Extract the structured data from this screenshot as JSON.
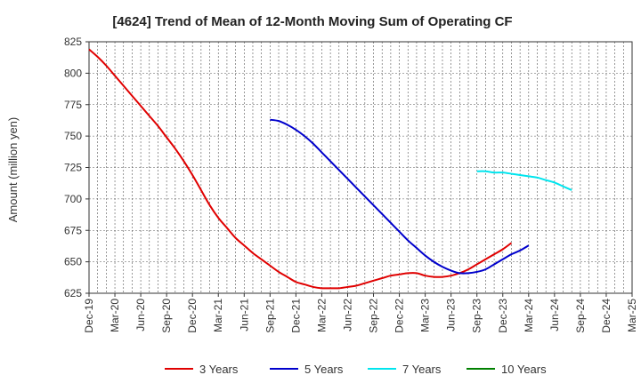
{
  "chart_data": {
    "type": "line",
    "title": "[4624]  Trend of Mean of 12-Month Moving Sum of Operating CF",
    "xlabel": "",
    "ylabel": "Amount (million yen)",
    "ylim": [
      625,
      825
    ],
    "yticks": [
      625,
      650,
      675,
      700,
      725,
      750,
      775,
      800,
      825
    ],
    "grid": true,
    "legend_position": "bottom",
    "x_tick_labels": [
      "Dec-19",
      "Mar-20",
      "Jun-20",
      "Sep-20",
      "Dec-20",
      "Mar-21",
      "Jun-21",
      "Sep-21",
      "Dec-21",
      "Mar-22",
      "Jun-22",
      "Sep-22",
      "Dec-22",
      "Mar-23",
      "Jun-23",
      "Sep-23",
      "Dec-23",
      "Mar-24",
      "Jun-24",
      "Sep-24",
      "Dec-24",
      "Mar-25"
    ],
    "series": [
      {
        "name": "3 Years",
        "color": "#e00000",
        "start_month_index": 0,
        "values": [
          819,
          813,
          806,
          798,
          790,
          782,
          774,
          766,
          758,
          749,
          740,
          730,
          719,
          707,
          695,
          685,
          677,
          669,
          663,
          657,
          652,
          647,
          642,
          638,
          634,
          632,
          630,
          629,
          629,
          629,
          630,
          631,
          633,
          635,
          637,
          639,
          640,
          641,
          641,
          639,
          638,
          638,
          639,
          641,
          644,
          648,
          652,
          656,
          660,
          665
        ]
      },
      {
        "name": "5 Years",
        "color": "#0000cc",
        "start_month_index": 21,
        "values": [
          763,
          762,
          759,
          755,
          750,
          744,
          737,
          730,
          723,
          716,
          709,
          702,
          695,
          688,
          681,
          674,
          667,
          661,
          655,
          650,
          646,
          643,
          641,
          641,
          642,
          644,
          648,
          652,
          656,
          659,
          663
        ]
      },
      {
        "name": "7 Years",
        "color": "#00e5ee",
        "start_month_index": 45,
        "values": [
          722,
          722,
          721,
          721,
          720,
          719,
          718,
          717,
          715,
          713,
          710,
          707
        ]
      },
      {
        "name": "10 Years",
        "color": "#008000",
        "start_month_index": 0,
        "values": []
      }
    ]
  }
}
